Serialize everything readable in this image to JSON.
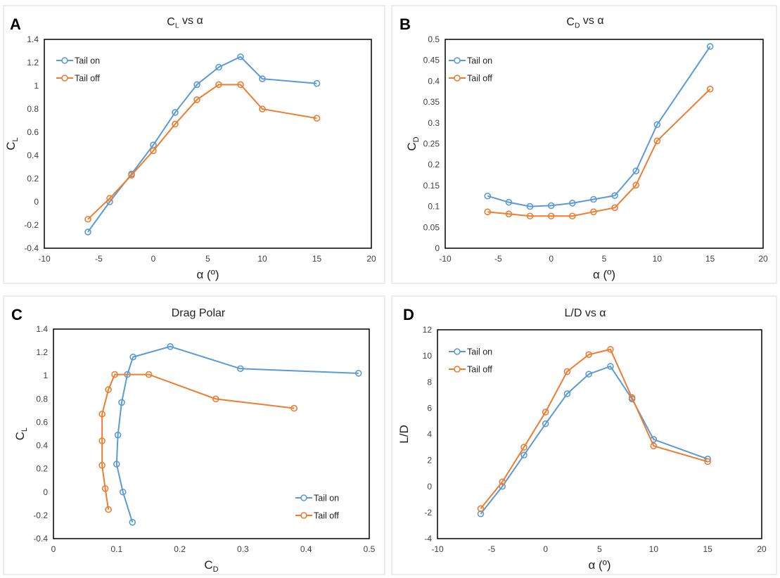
{
  "colors": {
    "tail_on": "#5b9bd5",
    "tail_off": "#ed7d31"
  },
  "chart_data": [
    {
      "type": "line",
      "panel": "A",
      "title": {
        "main": "C",
        "sub": "L",
        "rest": " vs α"
      },
      "xlabel": {
        "main": "α (º)",
        "sub": ""
      },
      "ylabel": {
        "main": "C",
        "sub": "L"
      },
      "xlim": [
        -10,
        20
      ],
      "xticks": [
        -10,
        -5,
        0,
        5,
        10,
        15,
        20
      ],
      "ylim": [
        -0.4,
        1.4
      ],
      "yticks": [
        -0.4,
        -0.2,
        0,
        0.2,
        0.4,
        0.6,
        0.8,
        1,
        1.2,
        1.4
      ],
      "legend": "top-left",
      "series": [
        {
          "name": "Tail on",
          "color_key": "tail_on",
          "x": [
            -6,
            -4,
            -2,
            0,
            2,
            4,
            6,
            8,
            10,
            15
          ],
          "y": [
            -0.26,
            0.0,
            0.24,
            0.49,
            0.77,
            1.01,
            1.16,
            1.25,
            1.06,
            1.02
          ]
        },
        {
          "name": "Tail off",
          "color_key": "tail_off",
          "x": [
            -6,
            -4,
            -2,
            0,
            2,
            4,
            6,
            8,
            10,
            15
          ],
          "y": [
            -0.15,
            0.03,
            0.23,
            0.44,
            0.67,
            0.88,
            1.01,
            1.01,
            0.8,
            0.72
          ]
        }
      ]
    },
    {
      "type": "line",
      "panel": "B",
      "title": {
        "main": "C",
        "sub": "D",
        "rest": " vs α"
      },
      "xlabel": {
        "main": "α (º)",
        "sub": ""
      },
      "ylabel": {
        "main": "C",
        "sub": "D"
      },
      "xlim": [
        -10,
        20
      ],
      "xticks": [
        -10,
        -5,
        0,
        5,
        10,
        15,
        20
      ],
      "ylim": [
        0,
        0.5
      ],
      "yticks": [
        0,
        0.05,
        0.1,
        0.15,
        0.2,
        0.25,
        0.3,
        0.35,
        0.4,
        0.45,
        0.5
      ],
      "legend": "top-left",
      "series": [
        {
          "name": "Tail on",
          "color_key": "tail_on",
          "x": [
            -6,
            -4,
            -2,
            0,
            2,
            4,
            6,
            8,
            10,
            15
          ],
          "y": [
            0.125,
            0.11,
            0.1,
            0.102,
            0.108,
            0.117,
            0.126,
            0.185,
            0.296,
            0.483
          ]
        },
        {
          "name": "Tail off",
          "color_key": "tail_off",
          "x": [
            -6,
            -4,
            -2,
            0,
            2,
            4,
            6,
            8,
            10,
            15
          ],
          "y": [
            0.087,
            0.082,
            0.077,
            0.077,
            0.077,
            0.087,
            0.097,
            0.151,
            0.257,
            0.381
          ]
        }
      ]
    },
    {
      "type": "line",
      "panel": "C",
      "title": {
        "main": "Drag Polar",
        "sub": "",
        "rest": ""
      },
      "xlabel": {
        "main": "C",
        "sub": "D"
      },
      "ylabel": {
        "main": "C",
        "sub": "L"
      },
      "xlim": [
        0,
        0.5
      ],
      "xticks": [
        0,
        0.1,
        0.2,
        0.3,
        0.4,
        0.5
      ],
      "ylim": [
        -0.4,
        1.4
      ],
      "yticks": [
        -0.4,
        -0.2,
        0,
        0.2,
        0.4,
        0.6,
        0.8,
        1,
        1.2,
        1.4
      ],
      "legend": "bottom-right",
      "series": [
        {
          "name": "Tail on",
          "color_key": "tail_on",
          "x": [
            0.125,
            0.11,
            0.1,
            0.102,
            0.108,
            0.117,
            0.126,
            0.185,
            0.296,
            0.483
          ],
          "y": [
            -0.26,
            0.0,
            0.24,
            0.49,
            0.77,
            1.01,
            1.16,
            1.25,
            1.06,
            1.02
          ]
        },
        {
          "name": "Tail off",
          "color_key": "tail_off",
          "x": [
            0.087,
            0.082,
            0.077,
            0.077,
            0.077,
            0.087,
            0.097,
            0.151,
            0.257,
            0.381
          ],
          "y": [
            -0.15,
            0.03,
            0.23,
            0.44,
            0.67,
            0.88,
            1.01,
            1.01,
            0.8,
            0.72
          ]
        }
      ]
    },
    {
      "type": "line",
      "panel": "D",
      "title": {
        "main": "L/D vs α",
        "sub": "",
        "rest": ""
      },
      "xlabel": {
        "main": "α (º)",
        "sub": ""
      },
      "ylabel": {
        "main": "L/D",
        "sub": ""
      },
      "xlim": [
        -10,
        20
      ],
      "xticks": [
        -10,
        -5,
        0,
        5,
        10,
        15,
        20
      ],
      "ylim": [
        -4,
        12
      ],
      "yticks": [
        -4,
        -2,
        0,
        2,
        4,
        6,
        8,
        10,
        12
      ],
      "legend": "top-left",
      "series": [
        {
          "name": "Tail on",
          "color_key": "tail_on",
          "x": [
            -6,
            -4,
            -2,
            0,
            2,
            4,
            6,
            8,
            10,
            15
          ],
          "y": [
            -2.1,
            0.0,
            2.4,
            4.8,
            7.1,
            8.6,
            9.2,
            6.7,
            3.6,
            2.1
          ]
        },
        {
          "name": "Tail off",
          "color_key": "tail_off",
          "x": [
            -6,
            -4,
            -2,
            0,
            2,
            4,
            6,
            8,
            10,
            15
          ],
          "y": [
            -1.7,
            0.35,
            3.0,
            5.7,
            8.8,
            10.1,
            10.5,
            6.8,
            3.1,
            1.9
          ]
        }
      ]
    }
  ]
}
